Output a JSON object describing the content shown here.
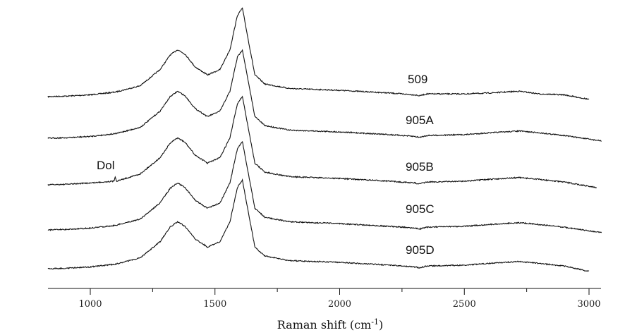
{
  "chart_data": {
    "type": "line",
    "title": "",
    "xlabel": "Raman shift (cm",
    "xlabel_sup": "-1",
    "xlabel_close": ")",
    "ylabel": "",
    "xlim": [
      830,
      3050
    ],
    "x_ticks": [
      1000,
      1500,
      2000,
      2500,
      3000
    ],
    "x_tick_labels": [
      "1000",
      "1500",
      "2000",
      "2500",
      "3000"
    ],
    "grid": false,
    "legend": "none",
    "line_color": "#111111",
    "annotations": [
      {
        "text": "Dol",
        "series": "905B",
        "x": 1100
      }
    ],
    "series": [
      {
        "name": "509",
        "range": [
          830,
          3000
        ],
        "x": [
          830,
          900,
          1000,
          1100,
          1200,
          1280,
          1320,
          1350,
          1380,
          1420,
          1470,
          1520,
          1560,
          1590,
          1610,
          1630,
          1660,
          1700,
          1800,
          2000,
          2200,
          2300,
          2320,
          2350,
          2500,
          2600,
          2720,
          2800,
          2900,
          3000
        ],
        "y": [
          0.0,
          0.005,
          0.02,
          0.05,
          0.12,
          0.3,
          0.46,
          0.52,
          0.47,
          0.33,
          0.24,
          0.3,
          0.52,
          0.9,
          0.98,
          0.68,
          0.24,
          0.14,
          0.09,
          0.07,
          0.04,
          0.02,
          0.01,
          0.03,
          0.03,
          0.04,
          0.06,
          0.03,
          0.02,
          -0.03
        ]
      },
      {
        "name": "905A",
        "range": [
          830,
          3050
        ],
        "x": [
          830,
          900,
          1000,
          1100,
          1200,
          1280,
          1320,
          1350,
          1380,
          1420,
          1470,
          1520,
          1560,
          1590,
          1610,
          1630,
          1660,
          1700,
          1800,
          2000,
          2200,
          2300,
          2320,
          2350,
          2500,
          2600,
          2720,
          2800,
          2900,
          3050
        ],
        "y": [
          0.0,
          0.005,
          0.02,
          0.05,
          0.12,
          0.3,
          0.46,
          0.52,
          0.47,
          0.33,
          0.24,
          0.3,
          0.52,
          0.9,
          0.98,
          0.68,
          0.24,
          0.14,
          0.09,
          0.07,
          0.04,
          0.02,
          0.01,
          0.03,
          0.04,
          0.06,
          0.08,
          0.06,
          0.03,
          -0.03
        ]
      },
      {
        "name": "905B",
        "range": [
          830,
          3030
        ],
        "x": [
          830,
          900,
          1000,
          1095,
          1100,
          1105,
          1200,
          1280,
          1320,
          1350,
          1380,
          1420,
          1470,
          1520,
          1560,
          1590,
          1610,
          1630,
          1660,
          1700,
          1800,
          2000,
          2200,
          2300,
          2320,
          2350,
          2500,
          2600,
          2720,
          2800,
          2900,
          3030
        ],
        "y": [
          0.0,
          0.005,
          0.02,
          0.04,
          0.09,
          0.04,
          0.12,
          0.3,
          0.46,
          0.52,
          0.47,
          0.33,
          0.24,
          0.3,
          0.52,
          0.9,
          0.98,
          0.68,
          0.24,
          0.14,
          0.09,
          0.07,
          0.04,
          0.02,
          0.01,
          0.03,
          0.04,
          0.06,
          0.08,
          0.06,
          0.03,
          -0.03
        ]
      },
      {
        "name": "905C",
        "range": [
          830,
          3050
        ],
        "x": [
          830,
          900,
          1000,
          1100,
          1200,
          1280,
          1320,
          1350,
          1380,
          1420,
          1470,
          1520,
          1560,
          1590,
          1610,
          1630,
          1660,
          1700,
          1800,
          2000,
          2200,
          2300,
          2320,
          2350,
          2500,
          2600,
          2720,
          2800,
          2900,
          3050
        ],
        "y": [
          0.0,
          0.005,
          0.02,
          0.05,
          0.12,
          0.3,
          0.46,
          0.52,
          0.47,
          0.33,
          0.24,
          0.3,
          0.52,
          0.9,
          0.98,
          0.68,
          0.24,
          0.14,
          0.09,
          0.07,
          0.04,
          0.02,
          0.01,
          0.03,
          0.04,
          0.06,
          0.08,
          0.06,
          0.03,
          -0.03
        ]
      },
      {
        "name": "905D",
        "range": [
          830,
          3000
        ],
        "x": [
          830,
          900,
          1000,
          1100,
          1200,
          1280,
          1320,
          1350,
          1380,
          1420,
          1470,
          1520,
          1560,
          1590,
          1610,
          1630,
          1660,
          1700,
          1800,
          2000,
          2200,
          2300,
          2320,
          2350,
          2500,
          2600,
          2720,
          2800,
          2900,
          3000
        ],
        "y": [
          0.0,
          0.005,
          0.02,
          0.05,
          0.12,
          0.3,
          0.46,
          0.52,
          0.47,
          0.33,
          0.24,
          0.3,
          0.52,
          0.9,
          0.98,
          0.68,
          0.24,
          0.14,
          0.09,
          0.07,
          0.04,
          0.02,
          0.01,
          0.03,
          0.04,
          0.06,
          0.08,
          0.06,
          0.03,
          -0.03
        ]
      }
    ]
  }
}
